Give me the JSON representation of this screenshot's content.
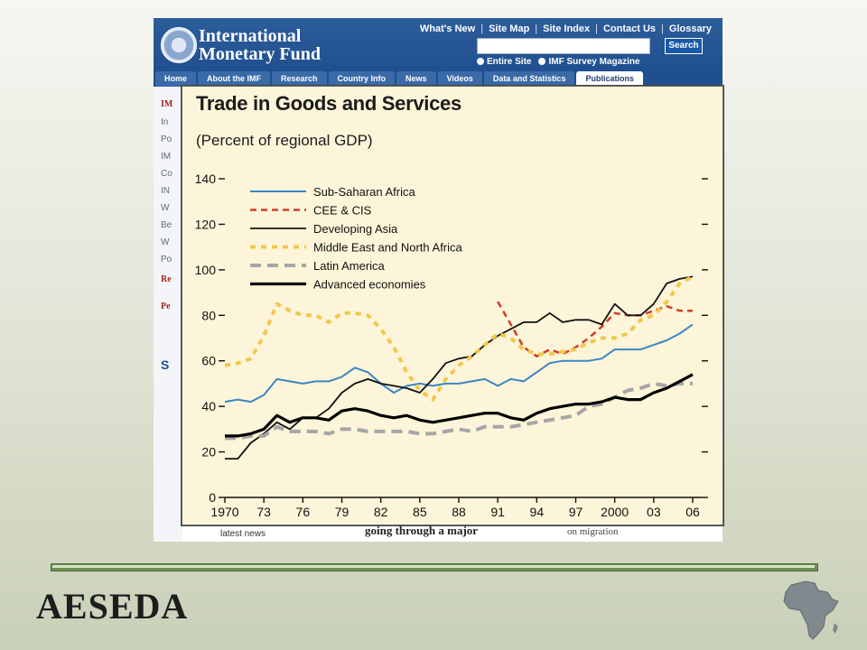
{
  "imf": {
    "name_line1": "International",
    "name_line2": "Monetary Fund",
    "top_links": [
      "What's New",
      "Site Map",
      "Site Index",
      "Contact Us",
      "Glossary"
    ],
    "search_button": "Search",
    "radio_entire_site": "Entire Site",
    "radio_survey": "IMF Survey Magazine",
    "tabs": [
      "Home",
      "About the IMF",
      "Research",
      "Country Info",
      "News",
      "Videos",
      "Data and Statistics",
      "Publications"
    ],
    "sidebar_items": [
      "IM",
      "In",
      "Po",
      "IM",
      "Co",
      "IN",
      "W",
      "Be",
      "W",
      "Po",
      "Re",
      "Pe",
      "S"
    ],
    "latest_news": "latest news",
    "headline": "going through a major",
    "migration": "on migration"
  },
  "chart_data": {
    "type": "line",
    "title": "Trade in Goods and Services",
    "subtitle": "(Percent of regional GDP)",
    "xlim": [
      1970,
      2006
    ],
    "ylim": [
      0,
      140
    ],
    "yticks": [
      0,
      20,
      40,
      60,
      80,
      100,
      120,
      140
    ],
    "xtick_labels": [
      "1970",
      "73",
      "76",
      "79",
      "82",
      "85",
      "88",
      "91",
      "94",
      "97",
      "2000",
      "03",
      "06"
    ],
    "xtick_values": [
      1970,
      1973,
      1976,
      1979,
      1982,
      1985,
      1988,
      1991,
      1994,
      1997,
      2000,
      2003,
      2006
    ],
    "series": [
      {
        "name": "Sub-Saharan Africa",
        "color": "#3a86c4",
        "dash": "",
        "width": 2,
        "x": [
          1970,
          1971,
          1972,
          1973,
          1974,
          1975,
          1976,
          1977,
          1978,
          1979,
          1980,
          1981,
          1982,
          1983,
          1984,
          1985,
          1986,
          1987,
          1988,
          1989,
          1990,
          1991,
          1992,
          1993,
          1994,
          1995,
          1996,
          1997,
          1998,
          1999,
          2000,
          2001,
          2002,
          2003,
          2004,
          2005,
          2006
        ],
        "y": [
          42,
          43,
          42,
          45,
          52,
          51,
          50,
          51,
          51,
          53,
          57,
          55,
          50,
          46,
          49,
          50,
          49,
          50,
          50,
          51,
          52,
          49,
          52,
          51,
          55,
          59,
          60,
          60,
          60,
          61,
          65,
          65,
          65,
          67,
          69,
          72,
          76
        ]
      },
      {
        "name": "CEE & CIS",
        "color": "#d43b2a",
        "dash": "7,5",
        "width": 2.5,
        "x": [
          1991,
          1992,
          1993,
          1994,
          1995,
          1996,
          1997,
          1998,
          1999,
          2000,
          2001,
          2002,
          2003,
          2004,
          2005,
          2006
        ],
        "y": [
          86,
          76,
          66,
          62,
          65,
          63,
          66,
          70,
          75,
          81,
          80,
          80,
          82,
          84,
          82,
          82
        ]
      },
      {
        "name": "Developing Asia",
        "color": "#111111",
        "dash": "",
        "width": 1.8,
        "x": [
          1970,
          1971,
          1972,
          1973,
          1974,
          1975,
          1976,
          1977,
          1978,
          1979,
          1980,
          1981,
          1982,
          1983,
          1984,
          1985,
          1986,
          1987,
          1988,
          1989,
          1990,
          1991,
          1992,
          1993,
          1994,
          1995,
          1996,
          1997,
          1998,
          1999,
          2000,
          2001,
          2002,
          2003,
          2004,
          2005,
          2006
        ],
        "y": [
          17,
          17,
          24,
          28,
          33,
          30,
          35,
          35,
          39,
          46,
          50,
          52,
          50,
          49,
          48,
          46,
          52,
          59,
          61,
          62,
          67,
          71,
          74,
          77,
          77,
          81,
          77,
          78,
          78,
          76,
          85,
          80,
          80,
          85,
          94,
          96,
          97
        ]
      },
      {
        "name": "Middle East and North Africa",
        "color": "#f2c84b",
        "dash": "6,6",
        "width": 4,
        "x": [
          1970,
          1971,
          1972,
          1973,
          1974,
          1975,
          1976,
          1977,
          1978,
          1979,
          1980,
          1981,
          1982,
          1983,
          1984,
          1985,
          1986,
          1987,
          1988,
          1989,
          1990,
          1991,
          1992,
          1993,
          1994,
          1995,
          1996,
          1997,
          1998,
          1999,
          2000,
          2001,
          2002,
          2003,
          2004,
          2005,
          2006
        ],
        "y": [
          58,
          59,
          61,
          71,
          85,
          82,
          80,
          80,
          77,
          81,
          81,
          80,
          74,
          66,
          55,
          47,
          43,
          52,
          58,
          62,
          67,
          72,
          70,
          65,
          63,
          63,
          64,
          65,
          68,
          70,
          70,
          72,
          78,
          80,
          86,
          94,
          97
        ]
      },
      {
        "name": "Latin America",
        "color": "#a6a6a6",
        "dash": "12,7",
        "width": 4,
        "x": [
          1970,
          1971,
          1972,
          1973,
          1974,
          1975,
          1976,
          1977,
          1978,
          1979,
          1980,
          1981,
          1982,
          1983,
          1984,
          1985,
          1986,
          1987,
          1988,
          1989,
          1990,
          1991,
          1992,
          1993,
          1994,
          1995,
          1996,
          1997,
          1998,
          1999,
          2000,
          2001,
          2002,
          2003,
          2004,
          2005,
          2006
        ],
        "y": [
          26,
          26,
          27,
          27,
          31,
          29,
          29,
          29,
          28,
          30,
          30,
          29,
          29,
          29,
          29,
          28,
          28,
          29,
          30,
          29,
          31,
          31,
          31,
          32,
          33,
          34,
          35,
          36,
          40,
          41,
          44,
          47,
          48,
          50,
          49,
          50,
          50
        ]
      },
      {
        "name": "Advanced economies",
        "color": "#000000",
        "dash": "",
        "width": 3.2,
        "x": [
          1970,
          1971,
          1972,
          1973,
          1974,
          1975,
          1976,
          1977,
          1978,
          1979,
          1980,
          1981,
          1982,
          1983,
          1984,
          1985,
          1986,
          1987,
          1988,
          1989,
          1990,
          1991,
          1992,
          1993,
          1994,
          1995,
          1996,
          1997,
          1998,
          1999,
          2000,
          2001,
          2002,
          2003,
          2004,
          2005,
          2006
        ],
        "y": [
          27,
          27,
          28,
          30,
          36,
          33,
          35,
          35,
          34,
          38,
          39,
          38,
          36,
          35,
          36,
          34,
          33,
          34,
          35,
          36,
          37,
          37,
          35,
          34,
          37,
          39,
          40,
          41,
          41,
          42,
          44,
          43,
          43,
          46,
          48,
          51,
          54
        ]
      }
    ],
    "legend_position": "top-left"
  },
  "footer": {
    "brand": "AESEDA"
  },
  "colors": {
    "imf_blue": "#1f4f8f",
    "chart_bg": "#fcf5d9",
    "rule_green": "#6f8f55"
  }
}
